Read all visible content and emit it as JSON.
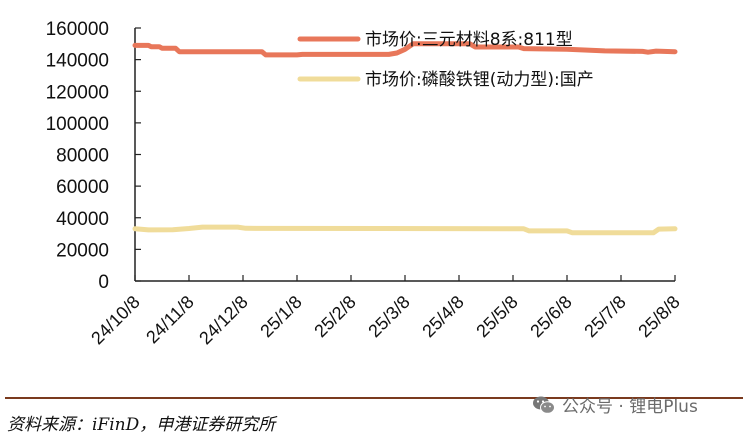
{
  "chart_data": {
    "type": "line",
    "title": "",
    "xlabel": "",
    "ylabel": "",
    "ylim": [
      0,
      160000
    ],
    "yticks": [
      0,
      20000,
      40000,
      60000,
      80000,
      100000,
      120000,
      140000,
      160000
    ],
    "ytick_labels": [
      "0",
      "20000",
      "40000",
      "60000",
      "80000",
      "100000",
      "120000",
      "140000",
      "160000"
    ],
    "x_tick_labels": [
      "24/10/8",
      "24/11/8",
      "24/12/8",
      "25/1/8",
      "25/2/8",
      "25/3/8",
      "25/4/8",
      "25/5/8",
      "25/6/8",
      "25/7/8",
      "25/8/8"
    ],
    "grid": false,
    "legend_position": "upper right (inside plot)",
    "series": [
      {
        "name": "市场价:三元材料8系:811型",
        "color": "#e8775a",
        "points": [
          [
            0.0,
            149000
          ],
          [
            0.25,
            149000
          ],
          [
            0.3,
            148200
          ],
          [
            0.45,
            148200
          ],
          [
            0.5,
            147200
          ],
          [
            0.75,
            147200
          ],
          [
            0.82,
            145000
          ],
          [
            2.35,
            145000
          ],
          [
            2.42,
            143000
          ],
          [
            3.0,
            143000
          ],
          [
            3.1,
            143300
          ],
          [
            4.7,
            143300
          ],
          [
            4.85,
            144200
          ],
          [
            5.0,
            146500
          ],
          [
            5.15,
            150000
          ],
          [
            6.2,
            150000
          ],
          [
            6.3,
            148000
          ],
          [
            7.1,
            148000
          ],
          [
            7.2,
            147000
          ],
          [
            8.0,
            146500
          ],
          [
            8.7,
            145500
          ],
          [
            9.4,
            145200
          ],
          [
            9.5,
            144700
          ],
          [
            9.65,
            145400
          ],
          [
            10.0,
            145000
          ]
        ]
      },
      {
        "name": "市场价:磷酸铁锂(动力型):国产",
        "color": "#f0dc9a",
        "points": [
          [
            0.0,
            33000
          ],
          [
            0.25,
            32300
          ],
          [
            0.7,
            32400
          ],
          [
            1.0,
            33200
          ],
          [
            1.25,
            34100
          ],
          [
            1.9,
            34100
          ],
          [
            2.05,
            33300
          ],
          [
            7.2,
            33000
          ],
          [
            7.3,
            31700
          ],
          [
            8.0,
            31700
          ],
          [
            8.1,
            30500
          ],
          [
            9.6,
            30500
          ],
          [
            9.7,
            32800
          ],
          [
            10.0,
            33000
          ]
        ]
      }
    ]
  },
  "legend": {
    "items": [
      {
        "label": "市场价:三元材料8系:811型",
        "color": "#e8775a"
      },
      {
        "label": "市场价:磷酸铁锂(动力型):国产",
        "color": "#f0dc9a"
      }
    ]
  },
  "footer": {
    "source": "资料来源：iFinD，申港证券研究所",
    "watermark_icon": "wechat-icon",
    "watermark": "公众号 · 锂电Plus"
  },
  "colors": {
    "axis": "#222222",
    "footer_rule": "#7a3a1e",
    "watermark": "#6b6b6b"
  }
}
